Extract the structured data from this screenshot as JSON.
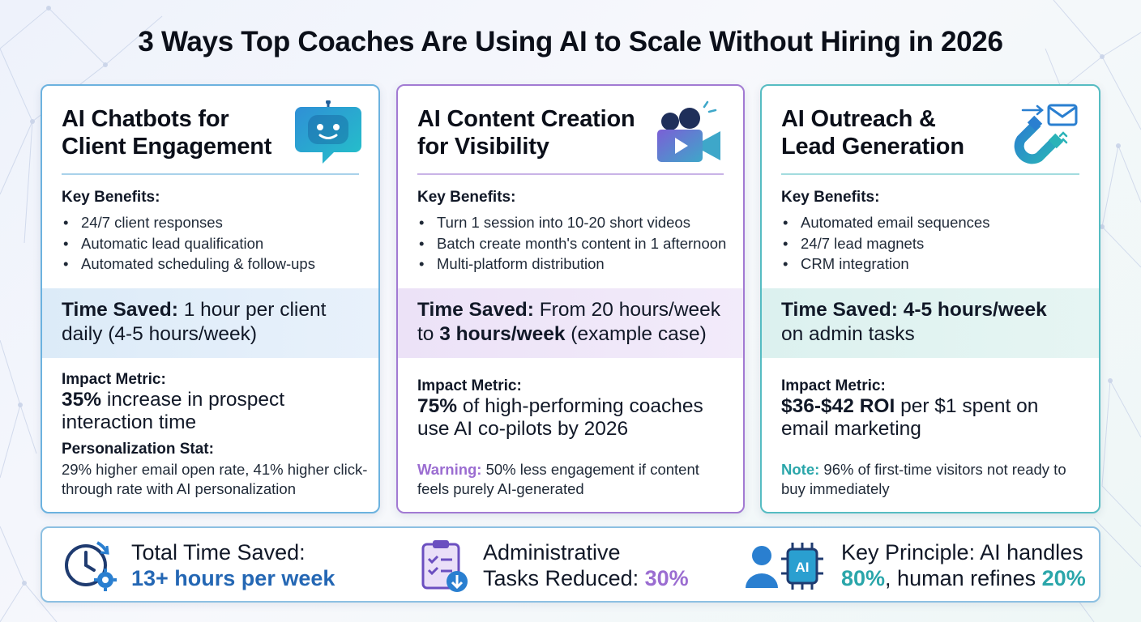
{
  "title": "3 Ways Top Coaches Are Using AI to Scale Without Hiring in 2026",
  "colors": {
    "blue": "#2467b4",
    "purple": "#9b6dd1",
    "teal": "#2aa6aa"
  },
  "cards": [
    {
      "icon": "robot-chat-icon",
      "title_line1": "AI Chatbots for",
      "title_line2": "Client Engagement",
      "key_benefits_title": "Key Benefits:",
      "benefits": [
        "24/7 client responses",
        "Automatic lead qualification",
        "Automated scheduling & follow-ups"
      ],
      "time_saved_label": "Time Saved:",
      "time_saved_text": " 1 hour per client daily (4-5 hours/week)",
      "impact_title": "Impact Metric:",
      "impact_bold": "35%",
      "impact_text": " increase in prospect interaction time",
      "stat_title": "Personalization Stat:",
      "stat_text": "29% higher email open rate, 41% higher click-through rate with AI personalization"
    },
    {
      "icon": "video-camera-icon",
      "title_line1": "AI Content Creation",
      "title_line2": "for Visibility",
      "key_benefits_title": "Key Benefits:",
      "benefits": [
        "Turn 1 session into 10-20 short videos",
        "Batch create month's content in 1 afternoon",
        "Multi-platform distribution"
      ],
      "time_saved_label": "Time Saved:",
      "time_saved_mid": " From 20 hours/week to ",
      "time_saved_bold2": "3 hours/week",
      "time_saved_end": " (example case)",
      "impact_title": "Impact Metric:",
      "impact_bold": "75%",
      "impact_text": " of high-performing coaches use AI co-pilots by 2026",
      "note_label": "Warning:",
      "note_text": " 50% less engagement if content feels purely AI-generated"
    },
    {
      "icon": "magnet-email-icon",
      "title_line1": "AI Outreach &",
      "title_line2": "Lead Generation",
      "key_benefits_title": "Key Benefits:",
      "benefits": [
        "Automated email sequences",
        "24/7 lead magnets",
        "CRM integration"
      ],
      "time_saved_label": "Time Saved:",
      "time_saved_bold2": " 4-5 hours/week",
      "time_saved_end": " on admin tasks",
      "impact_title": "Impact Metric:",
      "impact_bold": "$36-$42 ROI",
      "impact_text": " per $1 spent on email marketing",
      "note_label": "Note:",
      "note_text": " 96% of first-time visitors not ready to buy immediately"
    }
  ],
  "bottom": {
    "total_label": "Total Time Saved:",
    "total_value": "13+ hours per week",
    "admin_line1": "Administrative",
    "admin_line2": "Tasks Reduced: ",
    "admin_value": "30%",
    "principle_line1": "Key Principle: AI handles",
    "principle_pct1": "80%",
    "principle_mid": ", human refines ",
    "principle_pct2": "20%",
    "ai_chip_label": "AI"
  }
}
